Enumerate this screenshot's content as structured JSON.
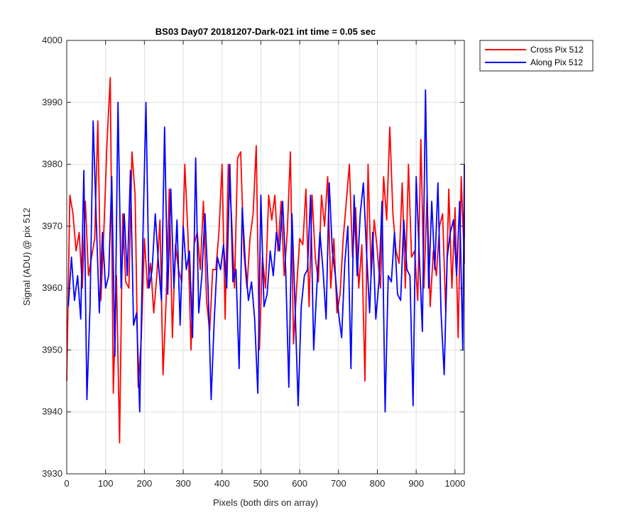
{
  "chart_data": {
    "type": "line",
    "title": "BS03 Day07 20181207-Dark-021 int time = 0.05 sec",
    "xlabel": "Pixels (both dirs on array)",
    "ylabel": "Signal (ADU) @ pix 512",
    "xlim": [
      0,
      1024
    ],
    "ylim": [
      3930,
      4000
    ],
    "xticks": [
      0,
      100,
      200,
      300,
      400,
      500,
      600,
      700,
      800,
      900,
      1000
    ],
    "yticks": [
      3930,
      3940,
      3950,
      3960,
      3970,
      3980,
      3990,
      4000
    ],
    "grid": true,
    "legend_position": "outside top-right",
    "series": [
      {
        "name": "Cross Pix 512",
        "color": "#ff0000",
        "x_start": 0,
        "x_step": 8,
        "values": [
          3945,
          3975,
          3972,
          3966,
          3969,
          3960,
          3974,
          3962,
          3965,
          3968,
          3987,
          3958,
          3970,
          3984,
          3994,
          3943,
          3962,
          3935,
          3972,
          3961,
          3960,
          3982,
          3975,
          3944,
          3952,
          3968,
          3960,
          3964,
          3956,
          3962,
          3971,
          3946,
          3958,
          3976,
          3952,
          3967,
          3963,
          3961,
          3980,
          3969,
          3950,
          3967,
          3969,
          3963,
          3974,
          3958,
          3953,
          3963,
          3963,
          3969,
          3980,
          3955,
          3980,
          3972,
          3960,
          3981,
          3982,
          3966,
          3960,
          3968,
          3972,
          3983,
          3950,
          3965,
          3960,
          3975,
          3971,
          3975,
          3966,
          3974,
          3962,
          3969,
          3982,
          3951,
          3960,
          3968,
          3967,
          3976,
          3957,
          3975,
          3965,
          3961,
          3975,
          3970,
          3978,
          3960,
          3968,
          3956,
          3959,
          3968,
          3974,
          3980,
          3965,
          3973,
          3960,
          3967,
          3945,
          3980,
          3962,
          3971,
          3966,
          3960,
          3978,
          3971,
          3986,
          3972,
          3966,
          3964,
          3977,
          3960,
          3980,
          3965,
          3966,
          3958,
          3984,
          3960,
          3975,
          3957,
          3966,
          3962,
          3970,
          3972,
          3956,
          3976,
          3960,
          3973,
          3952,
          3978,
          3964,
          3968,
          3972
        ]
      },
      {
        "name": "Along Pix 512",
        "color": "#0000ff",
        "x_start": 4,
        "x_step": 8,
        "values": [
          3957,
          3965,
          3958,
          3962,
          3955,
          3979,
          3942,
          3957,
          3987,
          3971,
          3956,
          3969,
          3960,
          3962,
          3978,
          3949,
          3990,
          3960,
          3972,
          3962,
          3979,
          3954,
          3956,
          3940,
          3968,
          3990,
          3960,
          3963,
          3972,
          3964,
          3958,
          3986,
          3959,
          3976,
          3960,
          3971,
          3954,
          3970,
          3963,
          3966,
          3952,
          3981,
          3956,
          3962,
          3972,
          3960,
          3942,
          3955,
          3965,
          3963,
          3967,
          3960,
          3980,
          3961,
          3963,
          3947,
          3973,
          3964,
          3958,
          3961,
          3955,
          3943,
          3975,
          3957,
          3959,
          3966,
          3962,
          3969,
          3966,
          3974,
          3963,
          3944,
          3972,
          3957,
          3941,
          3957,
          3962,
          3963,
          3975,
          3950,
          3960,
          3969,
          3963,
          3955,
          3977,
          3966,
          3962,
          3956,
          3952,
          3964,
          3970,
          3947,
          3975,
          3962,
          3972,
          3977,
          3966,
          3956,
          3969,
          3955,
          3961,
          3974,
          3940,
          3962,
          3961,
          3969,
          3959,
          3958,
          3971,
          3963,
          3962,
          3941,
          3978,
          3965,
          3953,
          3992,
          3960,
          3974,
          3963,
          3977,
          3956,
          3946,
          3965,
          3969,
          3971,
          3962,
          3974,
          3950,
          3980,
          3968
        ]
      }
    ]
  }
}
